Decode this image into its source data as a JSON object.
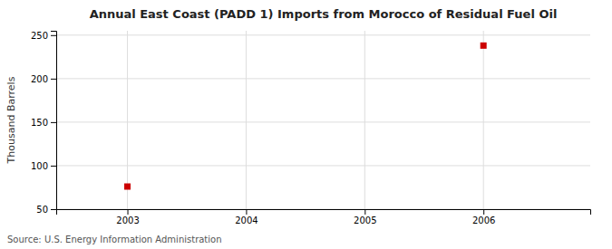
{
  "chart_data": {
    "type": "scatter",
    "title": "Annual East Coast (PADD 1) Imports from Morocco of Residual Fuel Oil",
    "ylabel": "Thousand Barrels",
    "source": "Source: U.S. Energy Information Administration",
    "x": [
      2003,
      2006
    ],
    "values": [
      76,
      238
    ],
    "color": "#cc0000",
    "marker": "square",
    "xlim": [
      2002.4,
      2006.9
    ],
    "ylim": [
      50,
      255
    ],
    "xticks": [
      2003,
      2004,
      2005,
      2006
    ],
    "yticks": [
      50,
      100,
      150,
      200,
      250
    ],
    "grid": true
  }
}
